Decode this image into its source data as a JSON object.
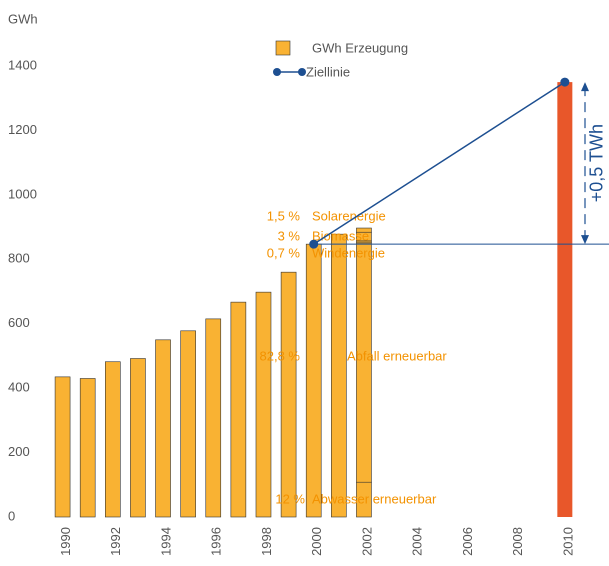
{
  "chart_data": {
    "type": "bar",
    "y_label": "GWh",
    "ylim": [
      0,
      1400
    ],
    "yticks": [
      0,
      200,
      400,
      600,
      800,
      1000,
      1200,
      1400
    ],
    "xlim": [
      1989.3,
      2011.4
    ],
    "xticks": [
      1990,
      1992,
      1994,
      1996,
      1998,
      2000,
      2002,
      2004,
      2006,
      2008,
      2010
    ],
    "grid": false,
    "series": [
      {
        "name": "GWh Erzeugung",
        "color": "#f9b233",
        "x": [
          1990,
          1991,
          1992,
          1993,
          1994,
          1995,
          1996,
          1997,
          1998,
          1999,
          2000,
          2001
        ],
        "values": [
          435,
          430,
          482,
          492,
          550,
          578,
          615,
          667,
          698,
          760,
          847,
          878
        ]
      }
    ],
    "stack": {
      "x": 2002,
      "color": "#f9b233",
      "segments": [
        {
          "label": "12 %",
          "name": "Abwasser erneuerbar",
          "value": 108
        },
        {
          "label": "82,8 %",
          "name": "Abfall erneuerbar",
          "value": 743
        },
        {
          "label": "0,7 %",
          "name": "Windenergie",
          "value": 6
        },
        {
          "label": "3 %",
          "name": "Biomasse",
          "value": 27
        },
        {
          "label": "1,5 %",
          "name": "Solarenergie",
          "value": 13
        }
      ]
    },
    "target": {
      "x": 2010,
      "value": 1350,
      "color": "#e8572a"
    },
    "target_line": {
      "name": "Ziellinie",
      "color": "#1d4f91",
      "x": [
        2000,
        2010
      ],
      "values": [
        847,
        1350
      ]
    },
    "annotation": "+0,5 TWh"
  }
}
